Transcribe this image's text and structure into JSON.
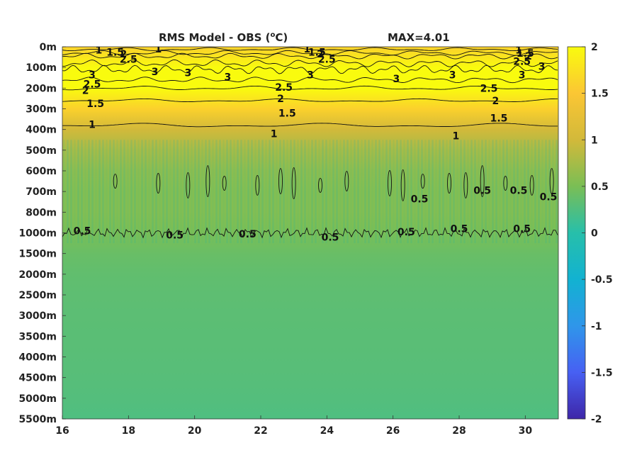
{
  "chart_data": {
    "type": "heatmap",
    "title": "RMS Model - OBS (",
    "title_unit_sup": "o",
    "title_unit_end": "C)",
    "max_label": "MAX=4.01",
    "xlim": [
      16,
      31
    ],
    "x_ticks": [
      16,
      18,
      20,
      22,
      24,
      26,
      28,
      30
    ],
    "x_tick_labels": [
      "16",
      "18",
      "20",
      "22",
      "24",
      "26",
      "28",
      "30"
    ],
    "y_tick_labels": [
      "0m",
      "100m",
      "200m",
      "300m",
      "400m",
      "500m",
      "600m",
      "700m",
      "800m",
      "1000m",
      "1500m",
      "2000m",
      "2500m",
      "3000m",
      "3500m",
      "4000m",
      "4500m",
      "5000m",
      "5500m"
    ],
    "y_orientation": "depth increases downward",
    "colorbar": {
      "range": [
        -2,
        2
      ],
      "ticks": [
        2,
        1.5,
        1,
        0.5,
        0,
        -0.5,
        -1,
        -1.5,
        -2
      ],
      "tick_labels": [
        "2",
        "1.5",
        "1",
        "0.5",
        "0",
        "-0.5",
        "-1",
        "-1.5",
        "-2"
      ],
      "colormap": "parula",
      "stops": [
        "#3e26a8",
        "#4760f3",
        "#2f96ea",
        "#12b2d1",
        "#27bfaa",
        "#7abe55",
        "#d2b93a",
        "#fbc634",
        "#f9fb0e"
      ]
    },
    "depth_profile": {
      "depth_levels": [
        "0m",
        "100m",
        "200m",
        "300m",
        "400m",
        "500m",
        "600m",
        "700m",
        "800m",
        "1000m",
        "1500m",
        "2000m",
        "2500m",
        "3000m",
        "3500m",
        "4000m",
        "4500m",
        "5000m",
        "5500m"
      ],
      "rms_values": [
        1.6,
        2.6,
        2.3,
        1.6,
        1.0,
        0.75,
        0.6,
        0.55,
        0.55,
        0.5,
        0.4,
        0.35,
        0.33,
        0.32,
        0.31,
        0.3,
        0.29,
        0.27,
        0.24
      ]
    },
    "contour_levels": [
      0.5,
      1,
      1.5,
      2,
      2.5,
      3
    ],
    "contour_labels": [
      {
        "text": "1",
        "x": 17.1,
        "depth_level": 0.15
      },
      {
        "text": "1.5",
        "x": 17.6,
        "depth_level": 0.25
      },
      {
        "text": "2",
        "x": 17.85,
        "depth_level": 0.35
      },
      {
        "text": "2.5",
        "x": 18.0,
        "depth_level": 0.6
      },
      {
        "text": "1",
        "x": 18.9,
        "depth_level": 0.1
      },
      {
        "text": "3",
        "x": 16.9,
        "depth_level": 1.35
      },
      {
        "text": "3",
        "x": 18.8,
        "depth_level": 1.2
      },
      {
        "text": "3",
        "x": 19.8,
        "depth_level": 1.25
      },
      {
        "text": "3",
        "x": 21.0,
        "depth_level": 1.45
      },
      {
        "text": "2.5",
        "x": 16.9,
        "depth_level": 1.8
      },
      {
        "text": "2",
        "x": 16.7,
        "depth_level": 2.1
      },
      {
        "text": "1.5",
        "x": 17.0,
        "depth_level": 2.75
      },
      {
        "text": "1",
        "x": 16.9,
        "depth_level": 3.75
      },
      {
        "text": "1",
        "x": 23.4,
        "depth_level": 0.1
      },
      {
        "text": "1.5",
        "x": 23.7,
        "depth_level": 0.25
      },
      {
        "text": "2",
        "x": 23.8,
        "depth_level": 0.35
      },
      {
        "text": "2.5",
        "x": 24.0,
        "depth_level": 0.6
      },
      {
        "text": "3",
        "x": 23.5,
        "depth_level": 1.35
      },
      {
        "text": "2.5",
        "x": 22.7,
        "depth_level": 1.95
      },
      {
        "text": "2",
        "x": 22.6,
        "depth_level": 2.5
      },
      {
        "text": "1.5",
        "x": 22.8,
        "depth_level": 3.2
      },
      {
        "text": "1",
        "x": 22.4,
        "depth_level": 4.2
      },
      {
        "text": "3",
        "x": 26.1,
        "depth_level": 1.55
      },
      {
        "text": "3",
        "x": 27.8,
        "depth_level": 1.35
      },
      {
        "text": "2.5",
        "x": 28.9,
        "depth_level": 2.0
      },
      {
        "text": "2",
        "x": 29.1,
        "depth_level": 2.6
      },
      {
        "text": "1.5",
        "x": 29.2,
        "depth_level": 3.45
      },
      {
        "text": "1",
        "x": 27.9,
        "depth_level": 4.3
      },
      {
        "text": "1",
        "x": 29.8,
        "depth_level": 0.15
      },
      {
        "text": "1.5",
        "x": 30.0,
        "depth_level": 0.3
      },
      {
        "text": "2",
        "x": 30.1,
        "depth_level": 0.45
      },
      {
        "text": "2.5",
        "x": 29.9,
        "depth_level": 0.7
      },
      {
        "text": "3",
        "x": 30.5,
        "depth_level": 0.95
      },
      {
        "text": "3",
        "x": 29.9,
        "depth_level": 1.35
      },
      {
        "text": "0.5",
        "x": 16.6,
        "depth_level": 8.9
      },
      {
        "text": "0.5",
        "x": 19.4,
        "depth_level": 9.1
      },
      {
        "text": "0.5",
        "x": 21.6,
        "depth_level": 9.05
      },
      {
        "text": "0.5",
        "x": 24.1,
        "depth_level": 9.2
      },
      {
        "text": "0.5",
        "x": 26.4,
        "depth_level": 8.95
      },
      {
        "text": "0.5",
        "x": 28.0,
        "depth_level": 8.8
      },
      {
        "text": "0.5",
        "x": 29.9,
        "depth_level": 8.8
      },
      {
        "text": "0.5",
        "x": 26.8,
        "depth_level": 7.35
      },
      {
        "text": "0.5",
        "x": 28.7,
        "depth_level": 6.95
      },
      {
        "text": "0.5",
        "x": 29.8,
        "depth_level": 6.95
      },
      {
        "text": "0.5",
        "x": 30.7,
        "depth_level": 7.25
      }
    ]
  }
}
